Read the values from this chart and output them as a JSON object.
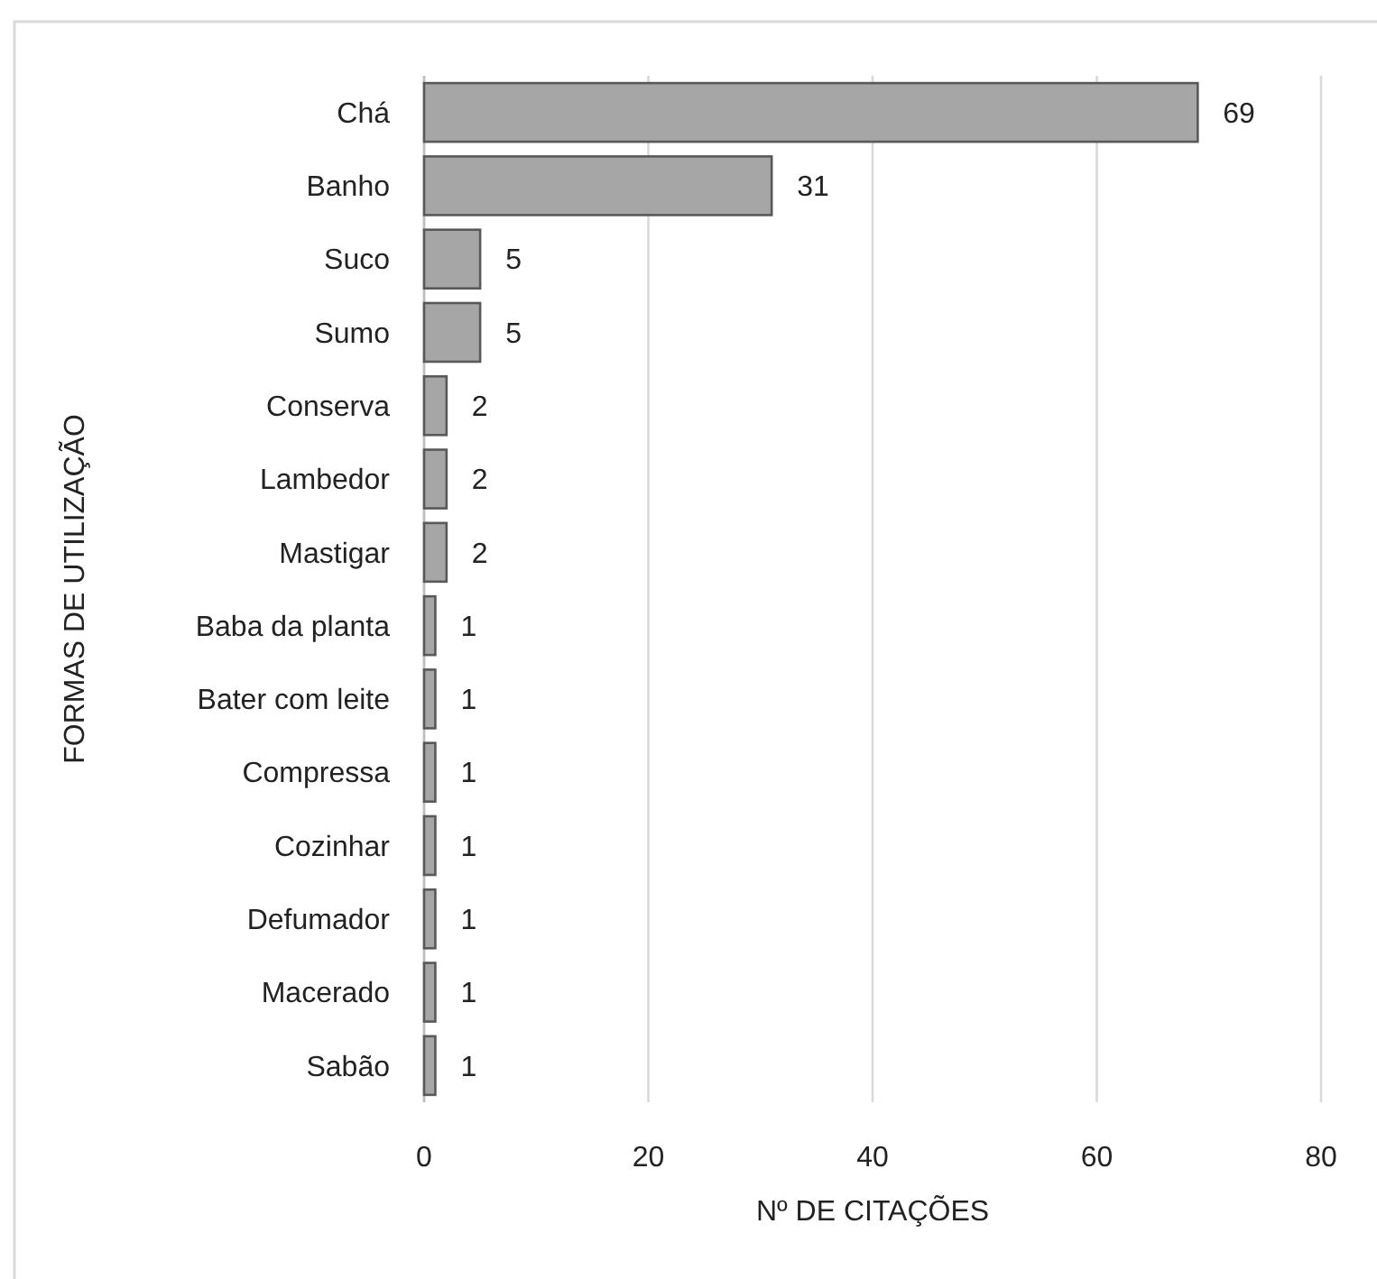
{
  "chart_data": {
    "type": "bar",
    "orientation": "horizontal",
    "xlabel": "Nº DE CITAÇÕES",
    "ylabel": "FORMAS DE UTILIZAÇÃO",
    "categories": [
      "Chá",
      "Banho",
      "Suco",
      "Sumo",
      "Conserva",
      "Lambedor",
      "Mastigar",
      "Baba da planta",
      "Bater com leite",
      "Compressa",
      "Cozinhar",
      "Defumador",
      "Macerado",
      "Sabão"
    ],
    "values": [
      69,
      31,
      5,
      5,
      2,
      2,
      2,
      1,
      1,
      1,
      1,
      1,
      1,
      1
    ],
    "color": "#a6a6a6",
    "xlim": [
      0,
      80
    ],
    "xticks": [
      0,
      20,
      40,
      60,
      80
    ],
    "grid": "x",
    "data_labels": true
  }
}
